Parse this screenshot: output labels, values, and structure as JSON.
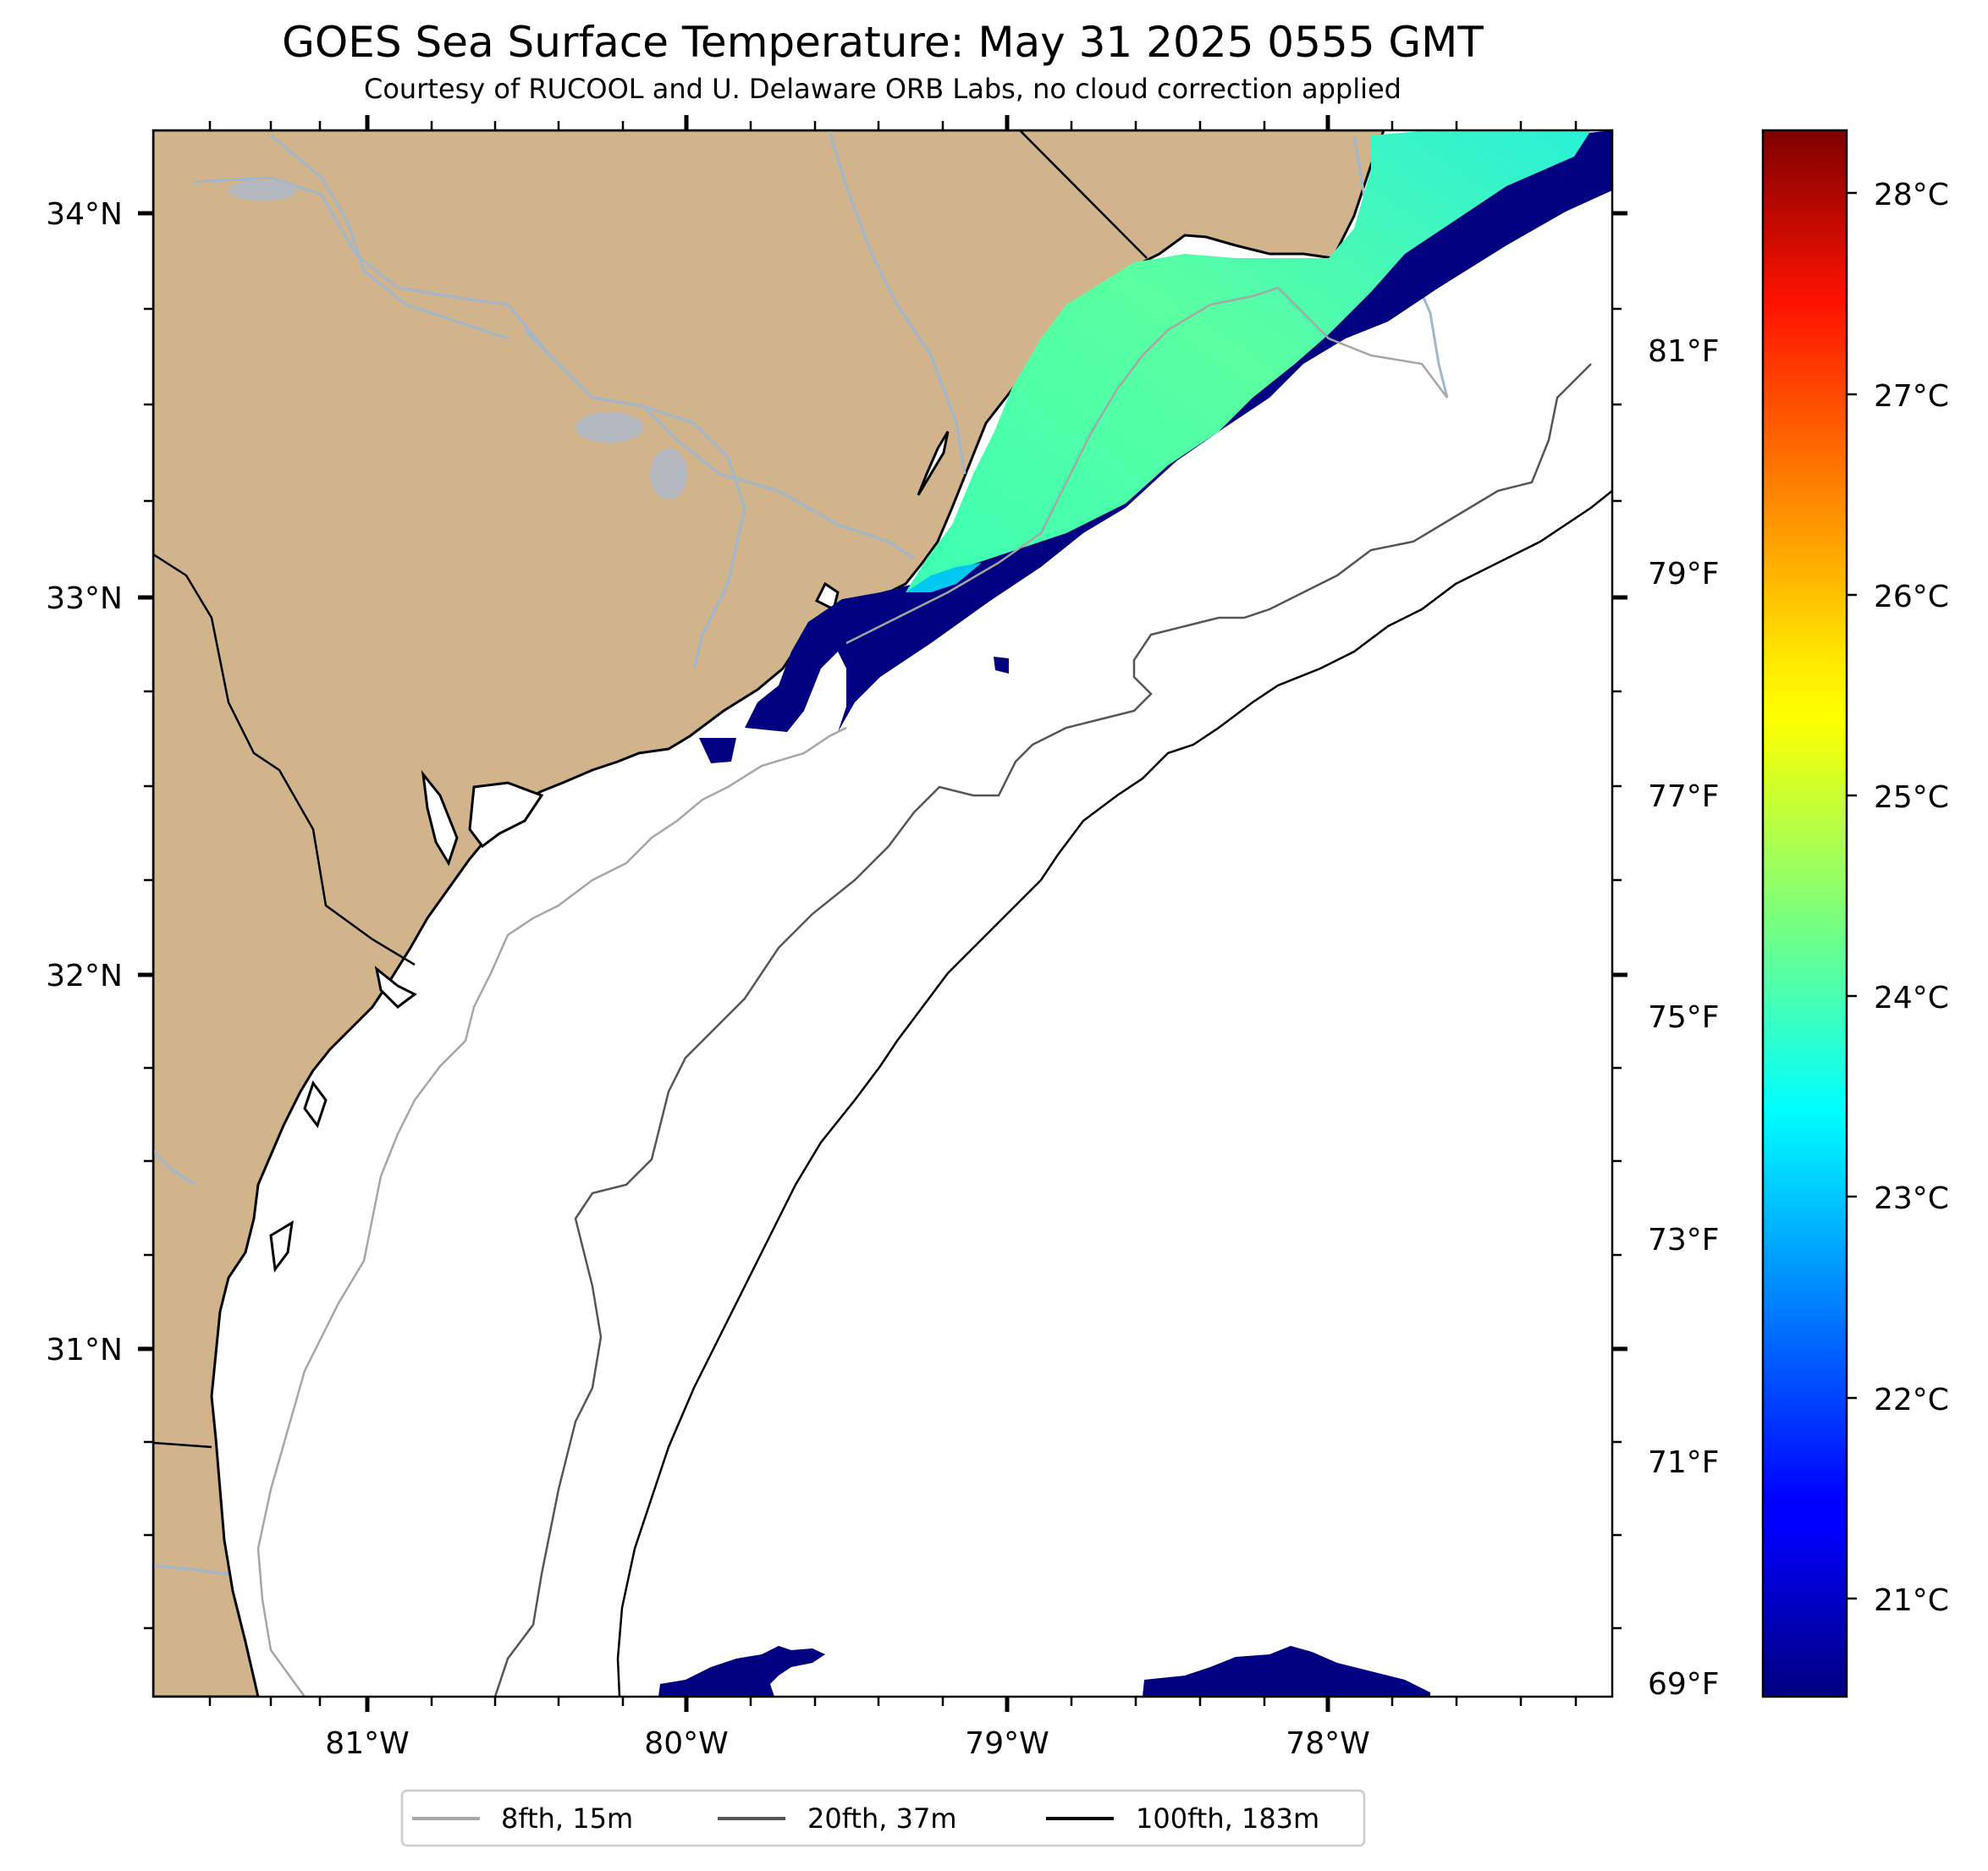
{
  "title": "GOES Sea Surface Temperature: May 31 2025 0555 GMT",
  "subtitle": "Courtesy of RUCOOL and U. Delaware ORB Labs, no cloud correction applied",
  "map": {
    "lon_range": [
      -81.67,
      -77.12
    ],
    "lat_range": [
      30.11,
      34.22
    ],
    "lon_ticks": [
      "81°W",
      "80°W",
      "79°W",
      "78°W"
    ],
    "lat_ticks": [
      "34°N",
      "33°N",
      "32°N",
      "31°N"
    ],
    "land_color": "#d2b48c",
    "ocean_color": "#ffffff",
    "river_color": "#9fb6cd"
  },
  "colorbar": {
    "colormap": "jet",
    "range_c": [
      20.5,
      28.3
    ],
    "celsius_ticks": [
      "28°C",
      "27°C",
      "26°C",
      "25°C",
      "24°C",
      "23°C",
      "22°C",
      "21°C"
    ],
    "fahrenheit_ticks": [
      "81°F",
      "79°F",
      "77°F",
      "75°F",
      "73°F",
      "71°F",
      "69°F"
    ]
  },
  "legend": {
    "position": "bottom-center",
    "items": [
      {
        "label": "8fth, 15m",
        "color": "#a6a6a6"
      },
      {
        "label": "20fth, 37m",
        "color": "#555555"
      },
      {
        "label": "100fth, 183m",
        "color": "#000000"
      }
    ]
  }
}
